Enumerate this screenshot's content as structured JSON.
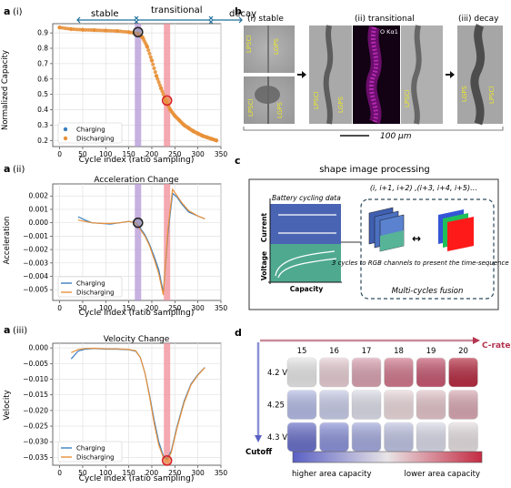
{
  "panels": {
    "a1": {
      "label": "a",
      "sub": "(i)",
      "phases": [
        "stable",
        "transitional",
        "decay"
      ],
      "ylabel": "Normalized Capacity",
      "xlabel": "Cycle index (ratio sampling)",
      "legend": [
        "Charging",
        "Discharging"
      ]
    },
    "a2": {
      "label": "a",
      "sub": "(ii)",
      "title": "Acceleration Change",
      "ylabel": "Acceleration",
      "xlabel": "Cycle index (ratio sampling)",
      "legend": [
        "Charging",
        "Discharging"
      ]
    },
    "a3": {
      "label": "a",
      "sub": "(iii)",
      "title": "Velocity Change",
      "ylabel": "Velocity",
      "xlabel": "Cycle index (ratio sampling)",
      "legend": [
        "Charging",
        "Discharging"
      ]
    },
    "b": {
      "label": "b",
      "titles": [
        "(i) stable",
        "(ii) transitional",
        "(iii) decay"
      ],
      "map_label": "O Kα1",
      "region_labels": [
        "LPSCl",
        "LGPS",
        "LPSCl",
        "LGPS",
        "LPSCl",
        "LGPS",
        "LPSCl",
        "LGPS",
        "LPSCl"
      ],
      "scalebar": "100 μm"
    },
    "c": {
      "label": "c",
      "title": "shape image processing",
      "plot_title": "Battery cycling data",
      "current_label": "Current",
      "voltage_label": "Voltage",
      "capacity_label": "Capacity",
      "sequence": "(i, i+1, i+2) ,(i+3, i+4, i+5)…",
      "note": "3 cycles to RGB channels to present the time-sequence info",
      "fusion": "Multi-cycles fusion"
    },
    "d": {
      "label": "d",
      "c_rates": [
        "15",
        "16",
        "17",
        "18",
        "19",
        "20"
      ],
      "c_rate_label": "C-rate",
      "cutoffs": [
        "4.2 V",
        "4.25 V",
        "4.3 V"
      ],
      "cutoff_label": "Cutoff",
      "colorbar_left": "higher area capacity",
      "colorbar_right": "lower area capacity",
      "colors": [
        [
          "#e6e6e6",
          "#e6cdd3",
          "#d9a1b0",
          "#d1788d",
          "#c65872",
          "#b72d43"
        ],
        [
          "#b4bbe6",
          "#c8cce8",
          "#dcdde8",
          "#ead8db",
          "#e3c4ca",
          "#d9a8b3"
        ],
        [
          "#6a70c9",
          "#8c93da",
          "#a4aade",
          "#c0c4e3",
          "#d9dae8",
          "#e6dfe1"
        ]
      ]
    }
  },
  "chart_data": [
    {
      "type": "scatter",
      "title": "",
      "xlabel": "Cycle index (ratio sampling)",
      "ylabel": "Normalized Capacity",
      "xlim": [
        -15,
        350
      ],
      "ylim": [
        0.16,
        0.96
      ],
      "xticks": [
        0,
        50,
        100,
        150,
        200,
        250,
        300,
        350
      ],
      "yticks": [
        0.2,
        0.3,
        0.4,
        0.5,
        0.6,
        0.7,
        0.8,
        0.9
      ],
      "grid": true,
      "legend_position": "bottom-left",
      "series": [
        {
          "name": "Charging",
          "color": "#3a7fc0",
          "x": [
            0,
            25,
            50,
            75,
            100,
            125,
            150,
            170,
            180,
            190,
            200,
            210,
            220,
            230,
            240,
            250,
            260,
            270,
            280,
            290,
            300,
            310,
            320,
            330,
            340
          ],
          "y": [
            0.935,
            0.925,
            0.92,
            0.918,
            0.915,
            0.912,
            0.905,
            0.895,
            0.87,
            0.81,
            0.72,
            0.62,
            0.54,
            0.46,
            0.4,
            0.36,
            0.33,
            0.3,
            0.28,
            0.26,
            0.245,
            0.23,
            0.22,
            0.21,
            0.2
          ]
        },
        {
          "name": "Discharging",
          "color": "#e8913a",
          "x": [
            0,
            25,
            50,
            75,
            100,
            125,
            150,
            170,
            180,
            190,
            200,
            210,
            220,
            230,
            240,
            250,
            260,
            270,
            280,
            290,
            300,
            310,
            320,
            330,
            340
          ],
          "y": [
            0.935,
            0.925,
            0.92,
            0.918,
            0.915,
            0.912,
            0.905,
            0.895,
            0.87,
            0.81,
            0.72,
            0.62,
            0.54,
            0.46,
            0.4,
            0.36,
            0.33,
            0.3,
            0.28,
            0.26,
            0.245,
            0.23,
            0.22,
            0.21,
            0.2
          ]
        }
      ],
      "vbands": [
        {
          "x": 170,
          "color": "#b497d6"
        },
        {
          "x": 233,
          "color": "#f08c96"
        }
      ],
      "markers": [
        {
          "x": 170,
          "y": 0.905,
          "color": "#222222"
        },
        {
          "x": 233,
          "y": 0.46,
          "color": "#d8232a"
        }
      ]
    },
    {
      "type": "line",
      "title": "Acceleration Change",
      "xlabel": "Cycle index (ratio sampling)",
      "ylabel": "Acceleration",
      "xlim": [
        -15,
        350
      ],
      "ylim": [
        -0.0058,
        0.0029
      ],
      "xticks": [
        0,
        50,
        100,
        150,
        200,
        250,
        300,
        350
      ],
      "yticks": [
        0.002,
        0.001,
        0.0,
        -0.001,
        -0.002,
        -0.003,
        -0.004,
        -0.005
      ],
      "ytick_labels": [
        "0.002",
        "0.001",
        "0.000",
        "−0.001",
        "−0.002",
        "−0.003",
        "−0.004",
        "−0.005"
      ],
      "grid": true,
      "legend_position": "bottom-left",
      "series": [
        {
          "name": "Charging",
          "color": "#3a7fc0",
          "x": [
            40,
            55,
            70,
            90,
            110,
            130,
            150,
            165,
            175,
            185,
            195,
            205,
            215,
            225,
            235,
            245,
            255,
            265,
            280,
            300,
            315
          ],
          "y": [
            0.00045,
            0.0002,
            0.0,
            -5e-05,
            -0.0001,
            0.0,
            0.0001,
            0.0,
            -0.0004,
            -0.0009,
            -0.0016,
            -0.0025,
            -0.0035,
            -0.0052,
            -0.0008,
            0.0022,
            0.0019,
            0.0014,
            0.0008,
            0.0005,
            0.0003
          ]
        },
        {
          "name": "Discharging",
          "color": "#e8913a",
          "x": [
            40,
            55,
            70,
            90,
            110,
            130,
            150,
            165,
            175,
            185,
            195,
            205,
            215,
            225,
            235,
            245,
            255,
            265,
            280,
            300,
            315
          ],
          "y": [
            0.0002,
            0.0001,
            0.0,
            -5e-05,
            -5e-05,
            0.0,
            0.0001,
            0.0,
            -0.0005,
            -0.001,
            -0.0017,
            -0.0027,
            -0.0038,
            -0.0054,
            -0.0005,
            0.0025,
            0.002,
            0.0015,
            0.0009,
            0.0005,
            0.0003
          ]
        }
      ],
      "vbands": [
        {
          "x": 170,
          "color": "#b497d6"
        },
        {
          "x": 233,
          "color": "#f08c96"
        }
      ],
      "markers": [
        {
          "x": 170,
          "y": 0.0,
          "color": "#222222"
        }
      ]
    },
    {
      "type": "line",
      "title": "Velocity Change",
      "xlabel": "Cycle index (ratio sampling)",
      "ylabel": "Velocity",
      "xlim": [
        -15,
        350
      ],
      "ylim": [
        -0.0375,
        0.0015
      ],
      "xticks": [
        0,
        50,
        100,
        150,
        200,
        250,
        300,
        350
      ],
      "yticks": [
        0.0,
        -0.005,
        -0.01,
        -0.015,
        -0.02,
        -0.025,
        -0.03,
        -0.035
      ],
      "ytick_labels": [
        "0.000",
        "−0.005",
        "−0.010",
        "−0.015",
        "−0.020",
        "−0.025",
        "−0.030",
        "−0.035"
      ],
      "grid": true,
      "legend_position": "bottom-left",
      "series": [
        {
          "name": "Charging",
          "color": "#3a7fc0",
          "x": [
            25,
            40,
            55,
            75,
            100,
            125,
            150,
            165,
            175,
            185,
            195,
            205,
            215,
            225,
            233,
            242,
            255,
            270,
            285,
            300,
            315
          ],
          "y": [
            -0.0035,
            -0.001,
            -0.0004,
            -0.0002,
            -0.0004,
            -0.0004,
            -0.0006,
            -0.001,
            -0.003,
            -0.008,
            -0.015,
            -0.023,
            -0.03,
            -0.0345,
            -0.0355,
            -0.033,
            -0.025,
            -0.017,
            -0.0115,
            -0.0085,
            -0.0062
          ]
        },
        {
          "name": "Discharging",
          "color": "#e8913a",
          "x": [
            25,
            40,
            55,
            75,
            100,
            125,
            150,
            165,
            175,
            185,
            195,
            205,
            215,
            225,
            233,
            242,
            255,
            270,
            285,
            300,
            315
          ],
          "y": [
            -0.0015,
            -0.0005,
            -0.0002,
            -0.0001,
            -0.0003,
            -0.0003,
            -0.0005,
            -0.0009,
            -0.003,
            -0.008,
            -0.0155,
            -0.024,
            -0.031,
            -0.035,
            -0.036,
            -0.0335,
            -0.0255,
            -0.0175,
            -0.0118,
            -0.0087,
            -0.0063
          ]
        }
      ],
      "vbands": [
        {
          "x": 233,
          "color": "#f08c96"
        }
      ],
      "markers": [
        {
          "x": 233,
          "y": -0.036,
          "color": "#d8232a"
        }
      ]
    }
  ]
}
